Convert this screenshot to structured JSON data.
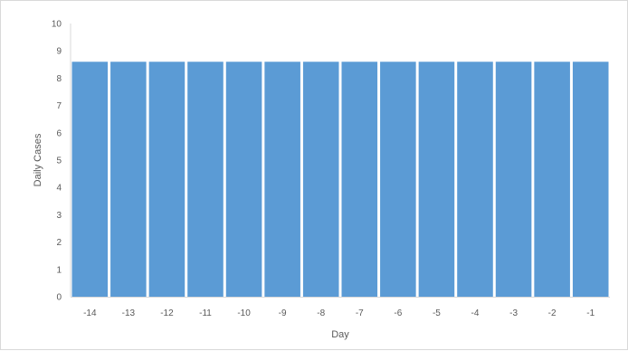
{
  "chart_data": {
    "type": "bar",
    "title": "",
    "xlabel": "Day",
    "ylabel": "Daily Cases",
    "categories": [
      "-14",
      "-13",
      "-12",
      "-11",
      "-10",
      "-9",
      "-8",
      "-7",
      "-6",
      "-5",
      "-4",
      "-3",
      "-2",
      "-1"
    ],
    "series": [
      {
        "values": [
          8.6,
          8.6,
          8.6,
          8.6,
          8.6,
          8.6,
          8.6,
          8.6,
          8.6,
          8.6,
          8.6,
          8.6,
          8.6,
          8.6
        ]
      }
    ],
    "ylim": [
      0,
      10
    ],
    "yticks": [
      0,
      1,
      2,
      3,
      4,
      5,
      6,
      7,
      8,
      9,
      10
    ],
    "grid": false,
    "legend": "none",
    "bar_color": "#5b9bd5",
    "axis_color": "#d9d9d9",
    "text_color": "#595959"
  }
}
